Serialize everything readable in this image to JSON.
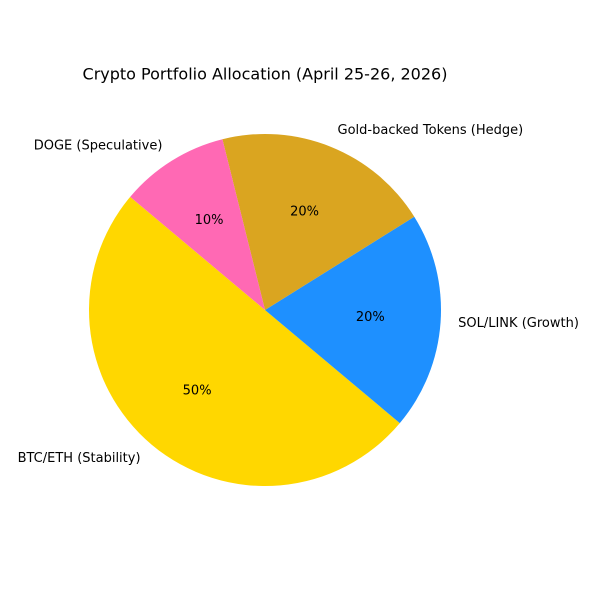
{
  "chart_data": {
    "type": "pie",
    "title": "Crypto Portfolio Allocation (April 25-26, 2026)",
    "categories": [
      "BTC/ETH (Stability)",
      "SOL/LINK (Growth)",
      "Gold-backed Tokens (Hedge)",
      "DOGE (Speculative)"
    ],
    "values": [
      50,
      20,
      20,
      10
    ],
    "value_labels": [
      "50%",
      "20%",
      "20%",
      "10%"
    ],
    "colors": [
      "#FFD700",
      "#1E90FF",
      "#DAA520",
      "#FF69B4"
    ],
    "start_angle": 140
  }
}
